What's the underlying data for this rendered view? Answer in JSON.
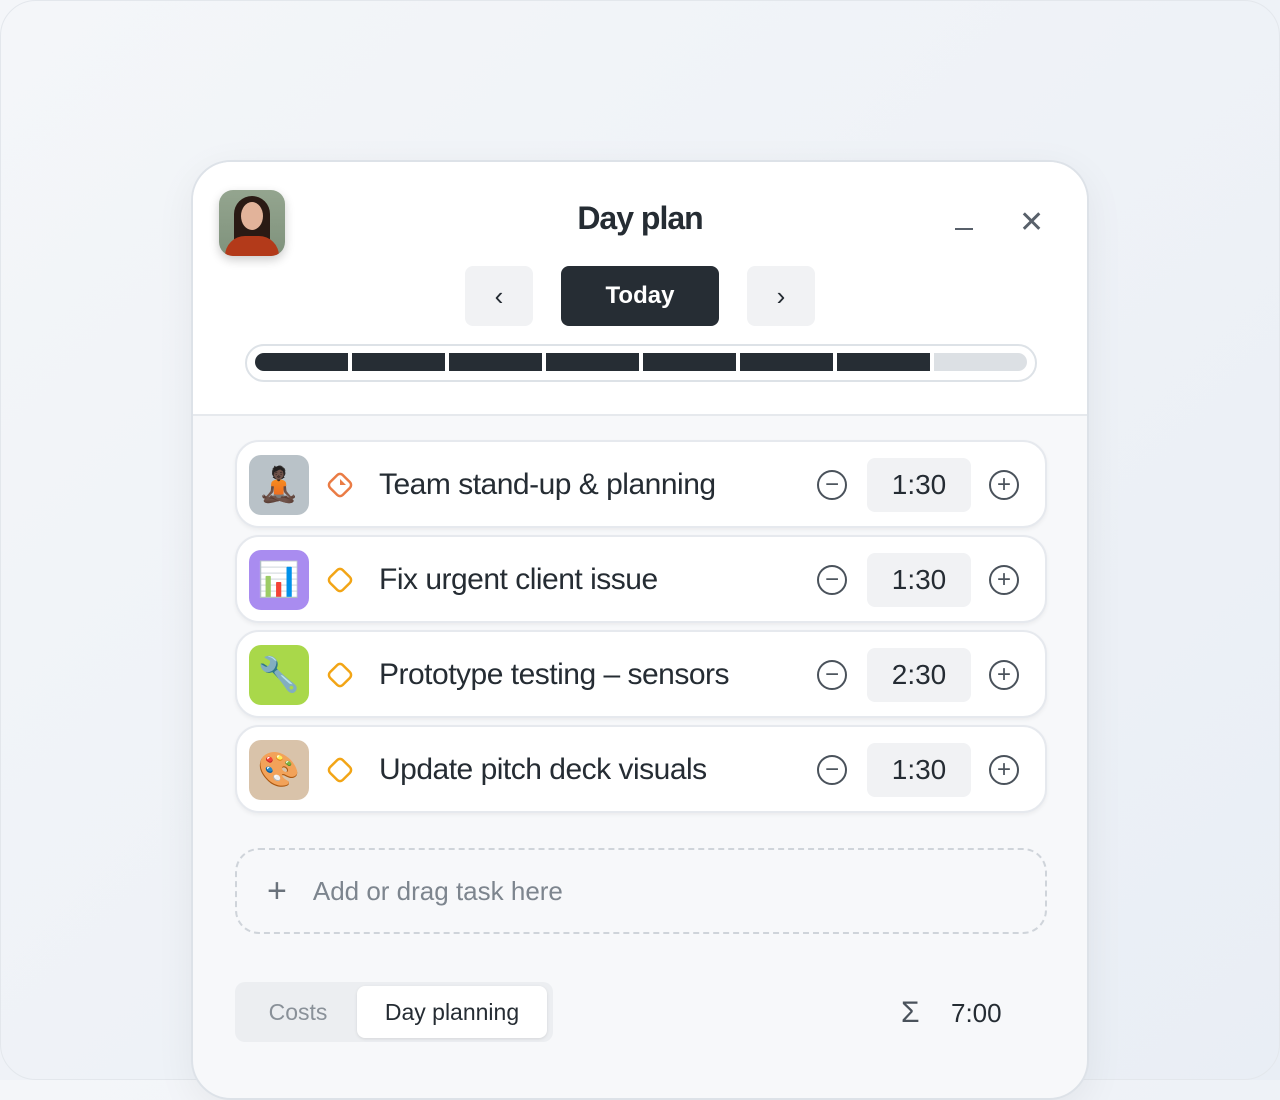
{
  "header": {
    "title": "Day plan",
    "today_label": "Today",
    "prev_icon": "chevron-left-icon",
    "next_icon": "chevron-right-icon",
    "minimize_icon": "minimize-icon",
    "close_icon": "close-icon"
  },
  "progress": {
    "segments_total": 8,
    "segments_filled": 7,
    "percent": 87.5
  },
  "tasks": [
    {
      "name": "Team stand-up & planning",
      "duration": "1:30",
      "icon": "lotus-position-emoji",
      "icon_bg": "#b9c2c8",
      "priority_color": "#ea7c45",
      "priority_icon": "diamond-clock-icon"
    },
    {
      "name": "Fix urgent client issue",
      "duration": "1:30",
      "icon": "bar-chart-emoji",
      "icon_bg": "#a98cf0",
      "priority_color": "#f2a516",
      "priority_icon": "diamond-icon"
    },
    {
      "name": "Prototype testing – sensors",
      "duration": "2:30",
      "icon": "wrench-emoji",
      "icon_bg": "#a9d84a",
      "priority_color": "#f2a516",
      "priority_icon": "diamond-icon"
    },
    {
      "name": "Update pitch deck visuals",
      "duration": "1:30",
      "icon": "artist-palette-emoji",
      "icon_bg": "#d9c3aa",
      "priority_color": "#f2a516",
      "priority_icon": "diamond-icon"
    }
  ],
  "add_task": {
    "label": "Add or drag task here"
  },
  "footer": {
    "tabs": [
      "Costs",
      "Day planning"
    ],
    "active_tab": "Day planning",
    "sum_symbol": "Σ",
    "total": "7:00"
  }
}
